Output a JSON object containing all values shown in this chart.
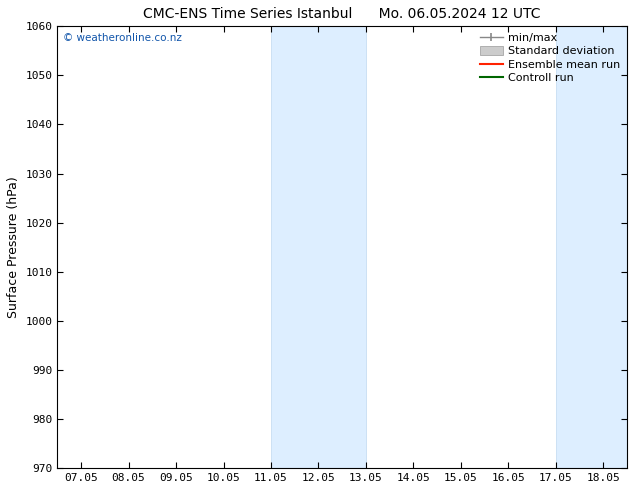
{
  "title": "CMC-ENS Time Series Istanbul",
  "title2": "Mo. 06.05.2024 12 UTC",
  "ylabel": "Surface Pressure (hPa)",
  "ylim": [
    970,
    1060
  ],
  "yticks": [
    970,
    980,
    990,
    1000,
    1010,
    1020,
    1030,
    1040,
    1050,
    1060
  ],
  "xtick_labels": [
    "07.05",
    "08.05",
    "09.05",
    "10.05",
    "11.05",
    "12.05",
    "13.05",
    "14.05",
    "15.05",
    "16.05",
    "17.05",
    "18.05"
  ],
  "xtick_positions": [
    0,
    1,
    2,
    3,
    4,
    5,
    6,
    7,
    8,
    9,
    10,
    11
  ],
  "xlim": [
    -0.5,
    11.5
  ],
  "shaded_bands": [
    {
      "x_start": 4.0,
      "x_end": 6.0
    },
    {
      "x_start": 10.0,
      "x_end": 11.5
    }
  ],
  "shade_color": "#ddeeff",
  "shade_edge_color": "#c0d8f0",
  "watermark": "© weatheronline.co.nz",
  "watermark_color": "#1155aa",
  "legend_labels": [
    "min/max",
    "Standard deviation",
    "Ensemble mean run",
    "Controll run"
  ],
  "background_color": "#ffffff",
  "plot_bg_color": "#ffffff",
  "title_fontsize": 10,
  "ylabel_fontsize": 9,
  "tick_fontsize": 8,
  "legend_fontsize": 8
}
